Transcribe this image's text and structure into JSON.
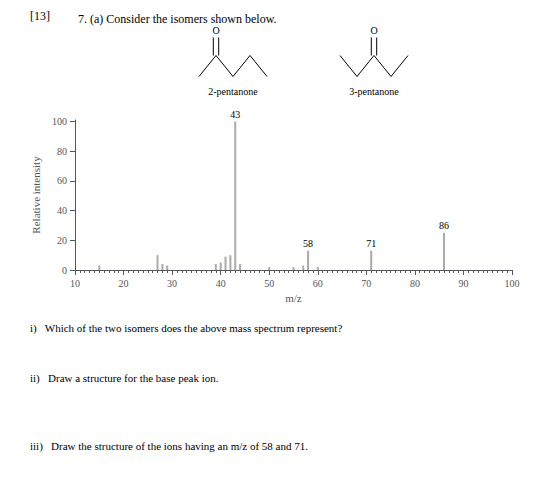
{
  "chart_data": {
    "type": "bar",
    "title": "7. (a) Consider the isomers shown below.",
    "marks": "[13]",
    "structures": [
      {
        "label": "2-pentanone",
        "atom": "O"
      },
      {
        "label": "3-pentanone",
        "atom": "O"
      }
    ],
    "xlabel": "m/z",
    "ylabel": "Relative intensity",
    "x": [
      43,
      58,
      71,
      86,
      15,
      27,
      28,
      29,
      39,
      40,
      41,
      42,
      44,
      50,
      55,
      57,
      60
    ],
    "values": [
      100,
      13,
      13,
      25,
      3,
      10,
      4,
      3,
      4,
      5,
      9,
      10,
      4,
      2,
      2,
      3,
      2
    ],
    "peak_labels": [
      {
        "x": 43,
        "text": "43"
      },
      {
        "x": 58,
        "text": "58"
      },
      {
        "x": 71,
        "text": "71"
      },
      {
        "x": 86,
        "text": "86"
      }
    ],
    "color": "#aaaaaa",
    "xlim": [
      10,
      100
    ],
    "xticks": [
      10,
      20,
      30,
      40,
      50,
      60,
      70,
      80,
      90,
      100
    ],
    "ylim": [
      0,
      101
    ],
    "yticks": [
      0,
      20,
      40,
      60,
      80,
      100
    ],
    "grid": false,
    "questions": [
      "i)   Which of the two isomers does the above mass spectrum represent?",
      "ii)   Draw a structure for the base peak ion.",
      "iii)   Draw the structure of the ions having an m/z of 58 and 71."
    ]
  }
}
